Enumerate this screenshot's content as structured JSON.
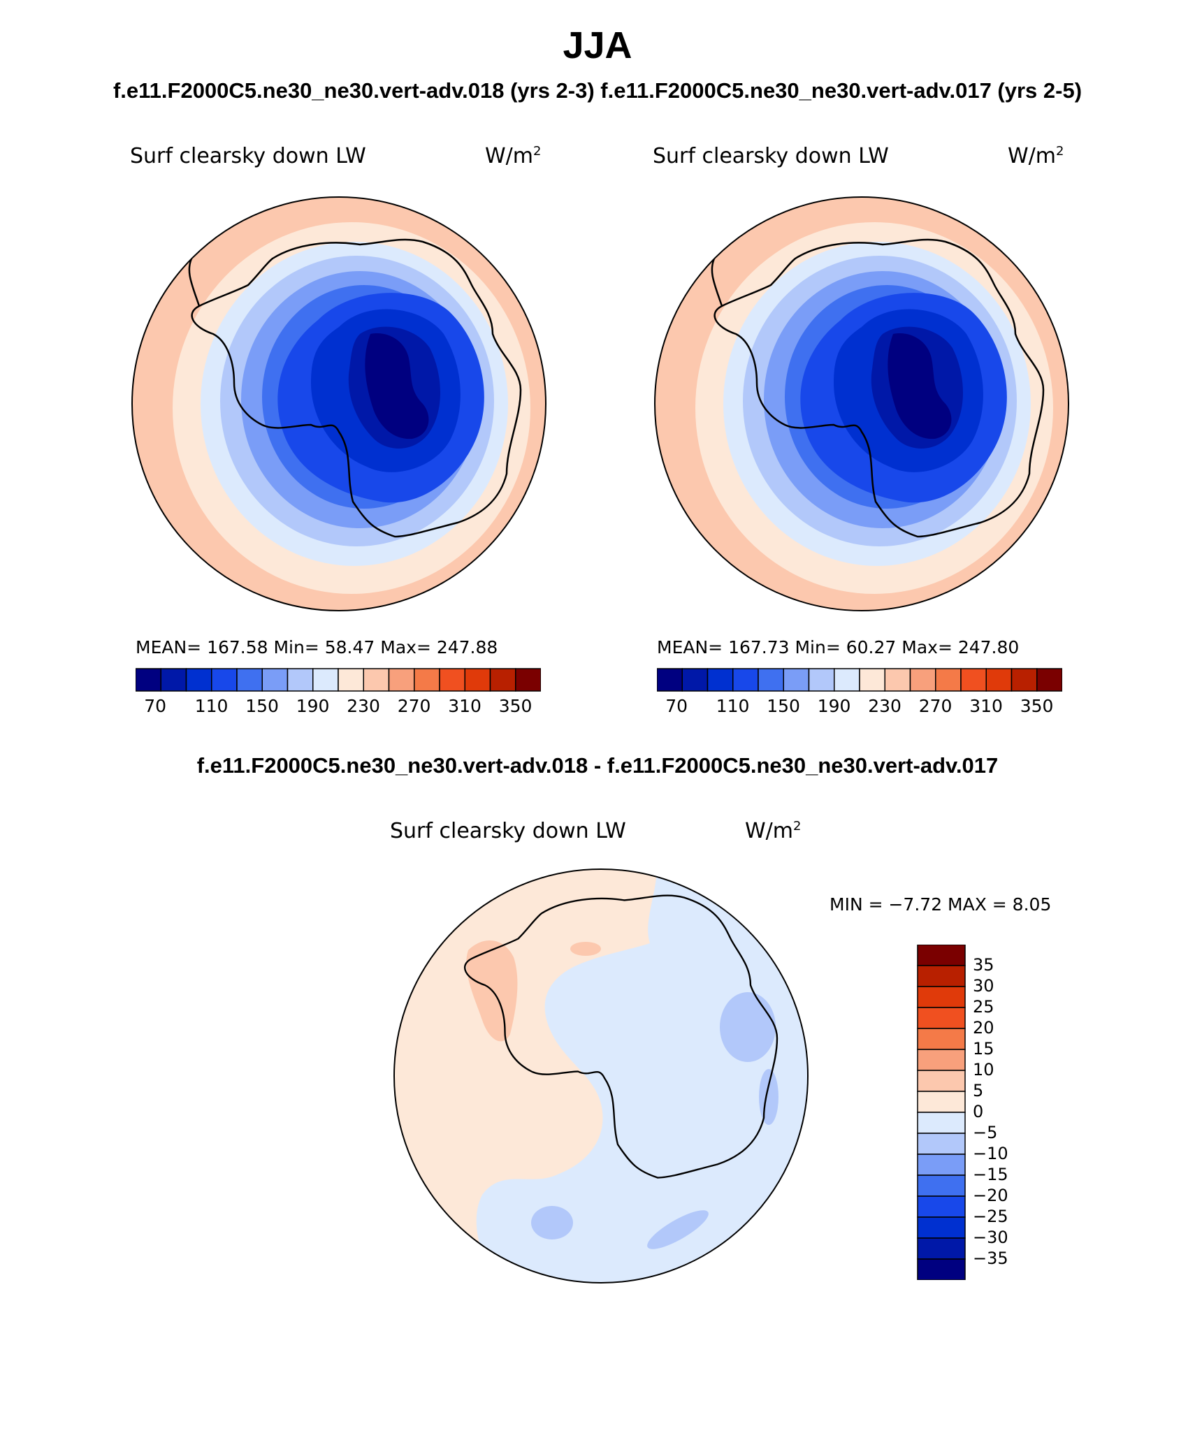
{
  "page": {
    "season": "JJA",
    "subtitle": "f.e11.F2000C5.ne30_ne30.vert-adv.018 (yrs 2-3)  f.e11.F2000C5.ne30_ne30.vert-adv.017 (yrs 2-5)",
    "diff_title": "f.e11.F2000C5.ne30_ne30.vert-adv.018 - f.e11.F2000C5.ne30_ne30.vert-adv.017"
  },
  "panels": [
    {
      "variable": "Surf clearsky down LW",
      "units_base": "W/m",
      "units_exp": "2",
      "stats": "MEAN= 167.58   Min=   58.47   Max= 247.88",
      "mean": 167.58,
      "min": 58.47,
      "max": 247.88,
      "colorbar_ticks": [
        "70",
        "110",
        "150",
        "190",
        "230",
        "270",
        "310",
        "350"
      ]
    },
    {
      "variable": "Surf clearsky down LW",
      "units_base": "W/m",
      "units_exp": "2",
      "stats": "MEAN= 167.73   Min=   60.27   Max= 247.80",
      "mean": 167.73,
      "min": 60.27,
      "max": 247.8,
      "colorbar_ticks": [
        "70",
        "110",
        "150",
        "190",
        "230",
        "270",
        "310",
        "350"
      ]
    }
  ],
  "diff_panel": {
    "variable": "Surf clearsky down LW",
    "units_base": "W/m",
    "units_exp": "2",
    "stats": "MIN =  −7.72  MAX =    8.05",
    "min": -7.72,
    "max": 8.05,
    "colorbar_ticks": [
      "35",
      "30",
      "25",
      "20",
      "15",
      "10",
      "5",
      "0",
      "−5",
      "−10",
      "−15",
      "−20",
      "−25",
      "−30",
      "−35"
    ]
  },
  "colors": {
    "field_scale": [
      "#000080",
      "#0018a8",
      "#0030d0",
      "#1848ea",
      "#3f70f0",
      "#7a9df7",
      "#b2c8fa",
      "#dceafd",
      "#fde8d8",
      "#fcc8ae",
      "#f8a07c",
      "#f47a48",
      "#f05020",
      "#e03a0a",
      "#b82000",
      "#7a0000"
    ],
    "diff_scale": [
      "#000080",
      "#0018a8",
      "#0030d0",
      "#1848ea",
      "#3f70f0",
      "#7a9df7",
      "#b2c8fa",
      "#dceafd",
      "#fde8d8",
      "#fcc8ae",
      "#f8a07c",
      "#f47a48",
      "#f05020",
      "#e03a0a",
      "#b82000",
      "#7a0000"
    ]
  }
}
